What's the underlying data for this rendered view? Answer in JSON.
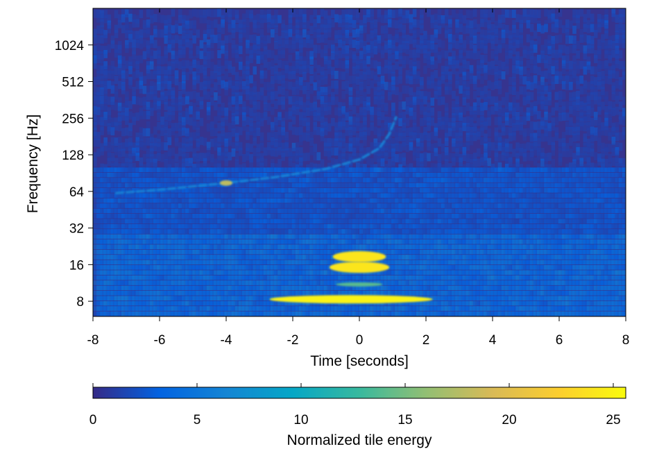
{
  "chart_data": {
    "type": "heatmap",
    "title": "",
    "xlabel": "Time [seconds]",
    "ylabel": "Frequency [Hz]",
    "xlim": [
      -8,
      8
    ],
    "x_ticks": [
      -8,
      -6,
      -4,
      -2,
      0,
      2,
      4,
      6,
      8
    ],
    "y_scale": "log2",
    "ylim": [
      6,
      2048
    ],
    "y_ticks": [
      8,
      16,
      32,
      64,
      128,
      256,
      512,
      1024
    ],
    "colorbar": {
      "label": "Normalized tile energy",
      "range": [
        0,
        25.6
      ],
      "ticks": [
        0,
        5,
        10,
        15,
        20,
        25
      ],
      "placement": "bottom",
      "colormap": [
        "#352a87",
        "#0363e1",
        "#1485d4",
        "#06a7c6",
        "#38b99e",
        "#92bf73",
        "#d9ba56",
        "#fcce2e",
        "#f9fb0e"
      ]
    },
    "features": [
      {
        "name": "chirp",
        "points": [
          [
            -7.3,
            62
          ],
          [
            -6.0,
            66
          ],
          [
            -4.0,
            75
          ],
          [
            -2.5,
            84
          ],
          [
            -1.0,
            98
          ],
          [
            0.0,
            117
          ],
          [
            0.6,
            145
          ],
          [
            0.9,
            190
          ],
          [
            1.1,
            260
          ]
        ],
        "energy": 6
      },
      {
        "name": "chirp-peak",
        "t": -4.0,
        "f": 75,
        "energy": 18
      },
      {
        "name": "blob-low",
        "t_range": [
          -2.7,
          2.2
        ],
        "f": 8.3,
        "energy": 25
      },
      {
        "name": "blob-16hz",
        "t_range": [
          -0.9,
          0.9
        ],
        "f": 15.2,
        "energy": 24
      },
      {
        "name": "blob-19hz",
        "t_range": [
          -0.8,
          0.8
        ],
        "f": 18.6,
        "energy": 24
      },
      {
        "name": "blob-11hz",
        "t_range": [
          -0.7,
          0.7
        ],
        "f": 11,
        "energy": 14
      }
    ]
  }
}
